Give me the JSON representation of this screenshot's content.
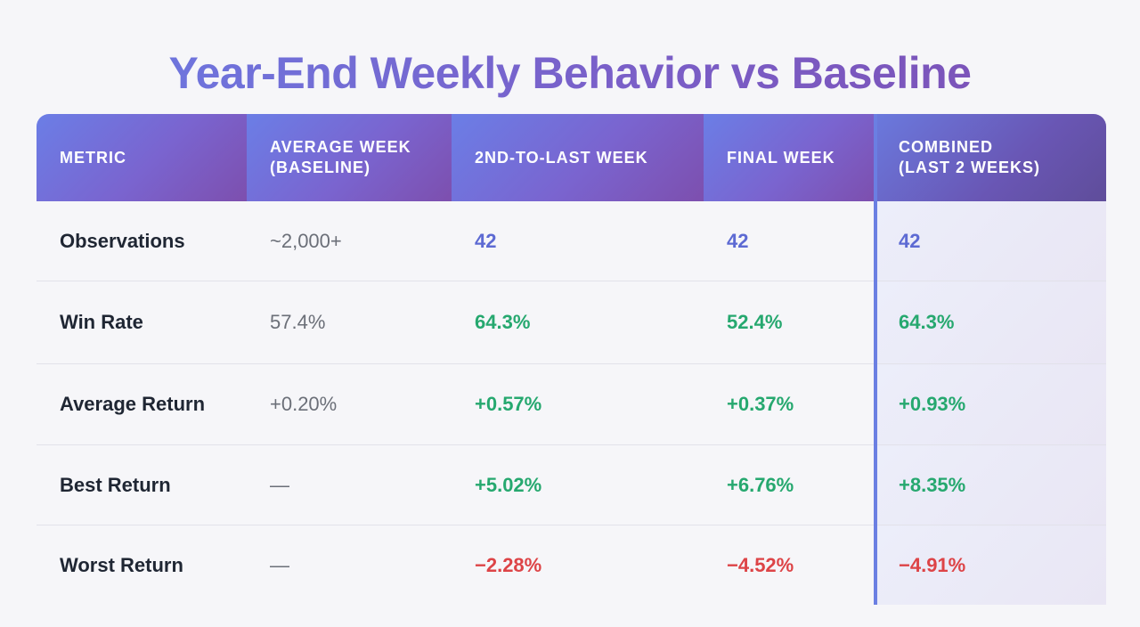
{
  "title": "Year-End Weekly Behavior vs Baseline",
  "colors": {
    "header_gradient_start": "#6b7ee6",
    "header_gradient_end": "#7d4fae",
    "neutral_value": "#5d6ad3",
    "positive_value": "#26a86f",
    "negative_value": "#dd4447",
    "accent_border": "#6b7fe2"
  },
  "table": {
    "headers": {
      "metric": "METRIC",
      "baseline_line1": "AVERAGE WEEK",
      "baseline_line2": "(BASELINE)",
      "second_last": "2ND-TO-LAST WEEK",
      "final": "FINAL WEEK",
      "combined_line1": "COMBINED",
      "combined_line2": "(LAST 2 WEEKS)"
    },
    "rows": [
      {
        "metric": "Observations",
        "baseline": "~2,000+",
        "second_last": "42",
        "final": "42",
        "combined": "42"
      },
      {
        "metric": "Win Rate",
        "baseline": "57.4%",
        "second_last": "64.3%",
        "final": "52.4%",
        "combined": "64.3%"
      },
      {
        "metric": "Average Return",
        "baseline": "+0.20%",
        "second_last": "+0.57%",
        "final": "+0.37%",
        "combined": "+0.93%"
      },
      {
        "metric": "Best Return",
        "baseline": "—",
        "second_last": "+5.02%",
        "final": "+6.76%",
        "combined": "+8.35%"
      },
      {
        "metric": "Worst Return",
        "baseline": "—",
        "second_last": "−2.28%",
        "final": "−4.52%",
        "combined": "−4.91%"
      }
    ]
  }
}
